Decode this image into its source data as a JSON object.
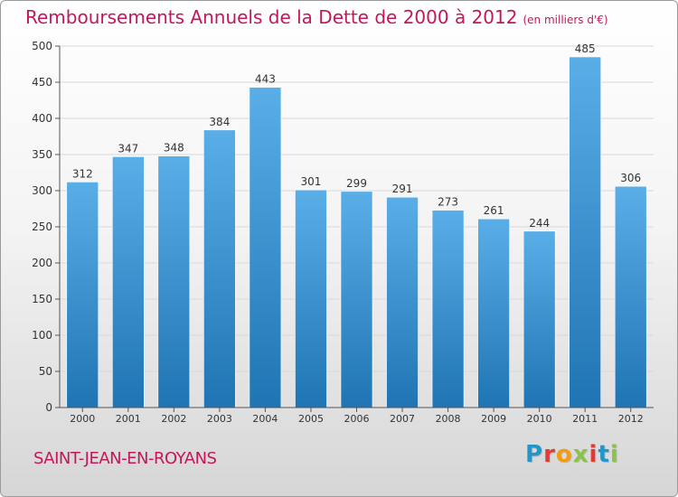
{
  "header": {
    "title": "Remboursements Annuels de la Dette de 2000 à 2012",
    "subtitle": "(en milliers d'€)"
  },
  "footer": {
    "city": "SAINT-JEAN-EN-ROYANS",
    "logo_letters": [
      "P",
      "r",
      "o",
      "x",
      "i",
      "t",
      "i"
    ],
    "logo_colors": [
      "#2196c9",
      "#e53935",
      "#f39c12",
      "#8bc34a",
      "#e53935",
      "#2196c9",
      "#8bc34a"
    ]
  },
  "chart_data": {
    "type": "bar",
    "title": "Remboursements Annuels de la Dette de 2000 à 2012",
    "categories": [
      "2000",
      "2001",
      "2002",
      "2003",
      "2004",
      "2005",
      "2006",
      "2007",
      "2008",
      "2009",
      "2010",
      "2011",
      "2012"
    ],
    "values": [
      312,
      347,
      348,
      384,
      443,
      301,
      299,
      291,
      273,
      261,
      244,
      485,
      306
    ],
    "ylim": [
      0,
      500
    ],
    "yticks": [
      0,
      50,
      100,
      150,
      200,
      250,
      300,
      350,
      400,
      450,
      500
    ],
    "grid": true,
    "bar_color_top": "#5aaee8",
    "bar_color_bottom": "#1f74b3"
  }
}
